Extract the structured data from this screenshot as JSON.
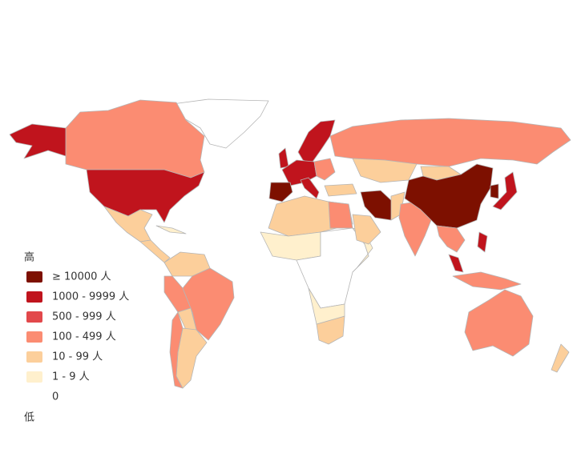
{
  "legend": {
    "top_label": "高",
    "bottom_label": "低",
    "items": [
      {
        "label": "≥ 10000 人",
        "color": "#7d1000"
      },
      {
        "label": "1000 - 9999 人",
        "color": "#c0141d"
      },
      {
        "label": "500 - 999 人",
        "color": "#e2484b"
      },
      {
        "label": "100 - 499 人",
        "color": "#fb8c72"
      },
      {
        "label": "10 - 99 人",
        "color": "#fccf9b"
      },
      {
        "label": "1 - 9 人",
        "color": "#fff0cd"
      },
      {
        "label": "0",
        "color": "#ffffff"
      }
    ]
  }
}
